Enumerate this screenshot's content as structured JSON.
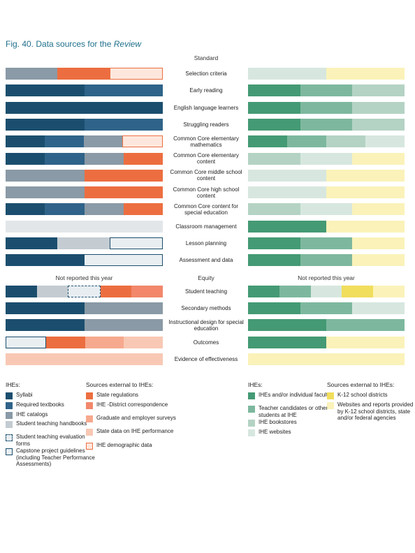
{
  "figure": {
    "title_prefix": "Fig. 40. Data sources for the ",
    "title_italic": "Review"
  },
  "headers": {
    "standard": "Standard",
    "equity": "Equity",
    "not_reported_left": "Not reported this year",
    "not_reported_right": "Not reported this year"
  },
  "colors": {
    "syllabi": "#1b4e6e",
    "textbooks": "#2f6389",
    "catalogs": "#8a9aa6",
    "handbooks": "#c4ccd2",
    "eval_forms": "#cfd7dd",
    "capstone": "#e9eef1",
    "state_regs": "#ec6e40",
    "district": "#f2876b",
    "grad_surveys": "#f6a98e",
    "state_perf": "#f8c8b4",
    "demographic": "#fde7dd",
    "ihe_faculty": "#449a74",
    "candidates": "#7db89e",
    "bookstores": "#b4d3c4",
    "websites": "#d7e7df",
    "k12": "#f0de5c",
    "ext_web": "#faf2b9",
    "classroom_gray": "#e2e6e9",
    "outline_dark": "#1b4e6e",
    "outline_orange": "#ec6e40"
  },
  "chart_data": {
    "type": "bar",
    "title": "Data sources for the Review",
    "left_panel": "IHEs / Sources external to IHEs",
    "right_panel": "IHEs / Sources external to IHEs",
    "rows": [
      {
        "label": "Selection criteria",
        "left": [
          "catalogs",
          "state_regs",
          "demographic"
        ],
        "right": [
          "websites",
          "ext_web"
        ]
      },
      {
        "label": "Early reading",
        "left": [
          "syllabi",
          "textbooks"
        ],
        "right": [
          "ihe_faculty",
          "candidates",
          "bookstores"
        ]
      },
      {
        "label": "English language learners",
        "left": [
          "syllabi"
        ],
        "right": [
          "ihe_faculty",
          "candidates",
          "bookstores"
        ]
      },
      {
        "label": "Struggling readers",
        "left": [
          "syllabi",
          "textbooks"
        ],
        "right": [
          "ihe_faculty",
          "candidates",
          "bookstores"
        ]
      },
      {
        "label": "Common Core elementary mathematics",
        "left": [
          "syllabi",
          "textbooks",
          "catalogs",
          "demographic"
        ],
        "right": [
          "ihe_faculty",
          "candidates",
          "bookstores",
          "websites"
        ]
      },
      {
        "label": "Common Core elementary content",
        "left": [
          "syllabi",
          "textbooks",
          "catalogs",
          "state_regs"
        ],
        "right": [
          "bookstores",
          "websites",
          "ext_web"
        ]
      },
      {
        "label": "Common Core middle school content",
        "left": [
          "catalogs",
          "state_regs"
        ],
        "right": [
          "websites",
          "ext_web"
        ]
      },
      {
        "label": "Common Core high school content",
        "left": [
          "catalogs",
          "state_regs"
        ],
        "right": [
          "websites",
          "ext_web"
        ]
      },
      {
        "label": "Common Core content for special education",
        "left": [
          "syllabi",
          "textbooks",
          "catalogs",
          "state_regs"
        ],
        "right": [
          "bookstores",
          "websites",
          "ext_web"
        ]
      },
      {
        "label": "Classroom management",
        "left": [
          "classroom_gray"
        ],
        "right": [
          "ihe_faculty",
          "ext_web"
        ]
      },
      {
        "label": "Lesson planning",
        "left": [
          "syllabi",
          "handbooks",
          "capstone"
        ],
        "right": [
          "ihe_faculty",
          "candidates",
          "ext_web"
        ]
      },
      {
        "label": "Assessment and data",
        "left": [
          "syllabi",
          "capstone"
        ],
        "right": [
          "ihe_faculty",
          "candidates",
          "ext_web"
        ]
      },
      {
        "label": "Student teaching",
        "left": [
          "syllabi",
          "handbooks",
          "eval_forms",
          "state_regs",
          "district"
        ],
        "right": [
          "ihe_faculty",
          "candidates",
          "websites",
          "k12",
          "ext_web"
        ]
      },
      {
        "label": "Secondary methods",
        "left": [
          "syllabi",
          "catalogs"
        ],
        "right": [
          "ihe_faculty",
          "candidates",
          "websites"
        ]
      },
      {
        "label": "Instructional design for special education",
        "left": [
          "syllabi",
          "catalogs"
        ],
        "right": [
          "ihe_faculty",
          "candidates"
        ]
      },
      {
        "label": "Outcomes",
        "left": [
          "capstone",
          "state_regs",
          "grad_surveys",
          "state_perf"
        ],
        "right": [
          "ihe_faculty",
          "ext_web"
        ]
      },
      {
        "label": "Evidence of effectiveness",
        "left": [
          "state_perf"
        ],
        "right": [
          "ext_web"
        ]
      }
    ],
    "section_break_after_row": 11
  },
  "legend": {
    "left_title": "IHEs:",
    "left_items": [
      {
        "key": "syllabi",
        "label": "Syllabi"
      },
      {
        "key": "textbooks",
        "label": "Required textbooks"
      },
      {
        "key": "catalogs",
        "label": "IHE catalogs"
      },
      {
        "key": "handbooks",
        "label": "Student teaching handbooks"
      },
      {
        "key": "eval_forms",
        "label": "Student teaching evaluation forms"
      },
      {
        "key": "capstone",
        "label": "Capstone project guidelines (including Teacher Performance Assessments)"
      }
    ],
    "ext_title": "Sources external to IHEs:",
    "ext_items": [
      {
        "key": "state_regs",
        "label": "State regulations"
      },
      {
        "key": "district",
        "label": "IHE -District correspondence"
      },
      {
        "key": "grad_surveys",
        "label": "Graduate and employer surveys"
      },
      {
        "key": "state_perf",
        "label": "State data on IHE performance"
      },
      {
        "key": "demographic",
        "label": "IHE demographic data"
      }
    ],
    "right_title": "IHEs:",
    "right_items": [
      {
        "key": "ihe_faculty",
        "label": "IHEs and/or individual faculty"
      },
      {
        "key": "candidates",
        "label": "Teacher candidates or other students at IHE"
      },
      {
        "key": "bookstores",
        "label": "IHE bookstores"
      },
      {
        "key": "websites",
        "label": "IHE websites"
      }
    ],
    "right_ext_title": "Sources external to IHEs:",
    "right_ext_items": [
      {
        "key": "k12",
        "label": "K-12 school districts"
      },
      {
        "key": "ext_web",
        "label": "Websites and reports provided by K-12 school districts, state and/or federal agencies"
      }
    ]
  }
}
